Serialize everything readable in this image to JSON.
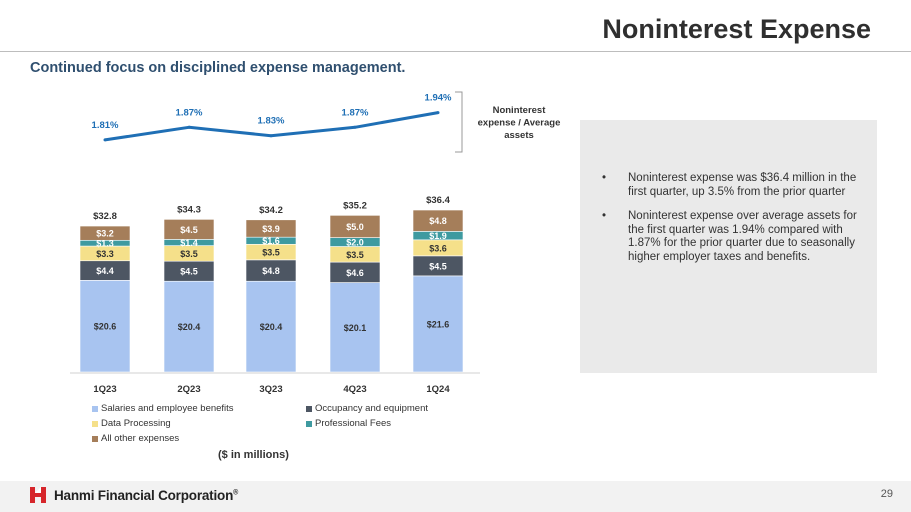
{
  "header": {
    "title": "Noninterest Expense",
    "subtitle": "Continued focus on disciplined expense management."
  },
  "chart_data": {
    "type": "bar",
    "stacked": true,
    "categories": [
      "1Q23",
      "2Q23",
      "3Q23",
      "4Q23",
      "1Q24"
    ],
    "series": [
      {
        "name": "Salaries and employee benefits",
        "color": "#a8c4f0",
        "values": [
          20.6,
          20.4,
          20.4,
          20.1,
          21.6
        ],
        "labels": [
          "$20.6",
          "$20.4",
          "$20.4",
          "$20.1",
          "$21.6"
        ]
      },
      {
        "name": "Occupancy and equipment",
        "color": "#4d5663",
        "values": [
          4.4,
          4.5,
          4.8,
          4.6,
          4.5
        ],
        "labels": [
          "$4.4",
          "$4.5",
          "$4.8",
          "$4.6",
          "$4.5"
        ]
      },
      {
        "name": "Data Processing",
        "color": "#f5e08a",
        "values": [
          3.3,
          3.5,
          3.5,
          3.5,
          3.6
        ],
        "labels": [
          "$3.3",
          "$3.5",
          "$3.5",
          "$3.5",
          "$3.6"
        ]
      },
      {
        "name": "Professional Fees",
        "color": "#3e9aa0",
        "values": [
          1.3,
          1.4,
          1.6,
          2.0,
          1.9
        ],
        "labels": [
          "$1.3",
          "$1.4",
          "$1.6",
          "$2.0",
          "$1.9"
        ]
      },
      {
        "name": "All other expenses",
        "color": "#a57e5a",
        "values": [
          3.2,
          4.5,
          3.9,
          5.0,
          4.8
        ],
        "labels": [
          "$3.2",
          "$4.5",
          "$3.9",
          "$5.0",
          "$4.8"
        ]
      }
    ],
    "totals": [
      32.8,
      34.3,
      34.2,
      35.2,
      36.4
    ],
    "total_labels": [
      "$32.8",
      "$34.3",
      "$34.2",
      "$35.2",
      "$36.4"
    ],
    "ratio_line": {
      "name": "Noninterest expense / Average assets",
      "values": [
        1.81,
        1.87,
        1.83,
        1.87,
        1.94
      ],
      "labels": [
        "1.81%",
        "1.87%",
        "1.83%",
        "1.87%",
        "1.94%"
      ],
      "color": "#1f6fb5"
    },
    "ratio_label": "Noninterest expense / Average assets",
    "ratio_label_lines": [
      "Noninterest",
      "expense / Average",
      "assets"
    ],
    "units": "($ in millions)",
    "ylim": [
      0,
      40
    ],
    "legend_position": "bottom"
  },
  "commentary": {
    "bullet_char": "•",
    "bullets": [
      "Noninterest expense was $36.4 million in the first quarter, up 3.5% from the prior quarter",
      "Noninterest expense over average assets for the first quarter was 1.94% compared with 1.87% for the prior quarter due to seasonally higher employer taxes and benefits."
    ]
  },
  "footer": {
    "company": "Hanmi Financial Corporation",
    "trademark": "®",
    "page_number": "29"
  },
  "colors": {
    "accent_red": "#d6262b",
    "title": "#2f2f2f",
    "subtitle": "#2f4f6f"
  }
}
